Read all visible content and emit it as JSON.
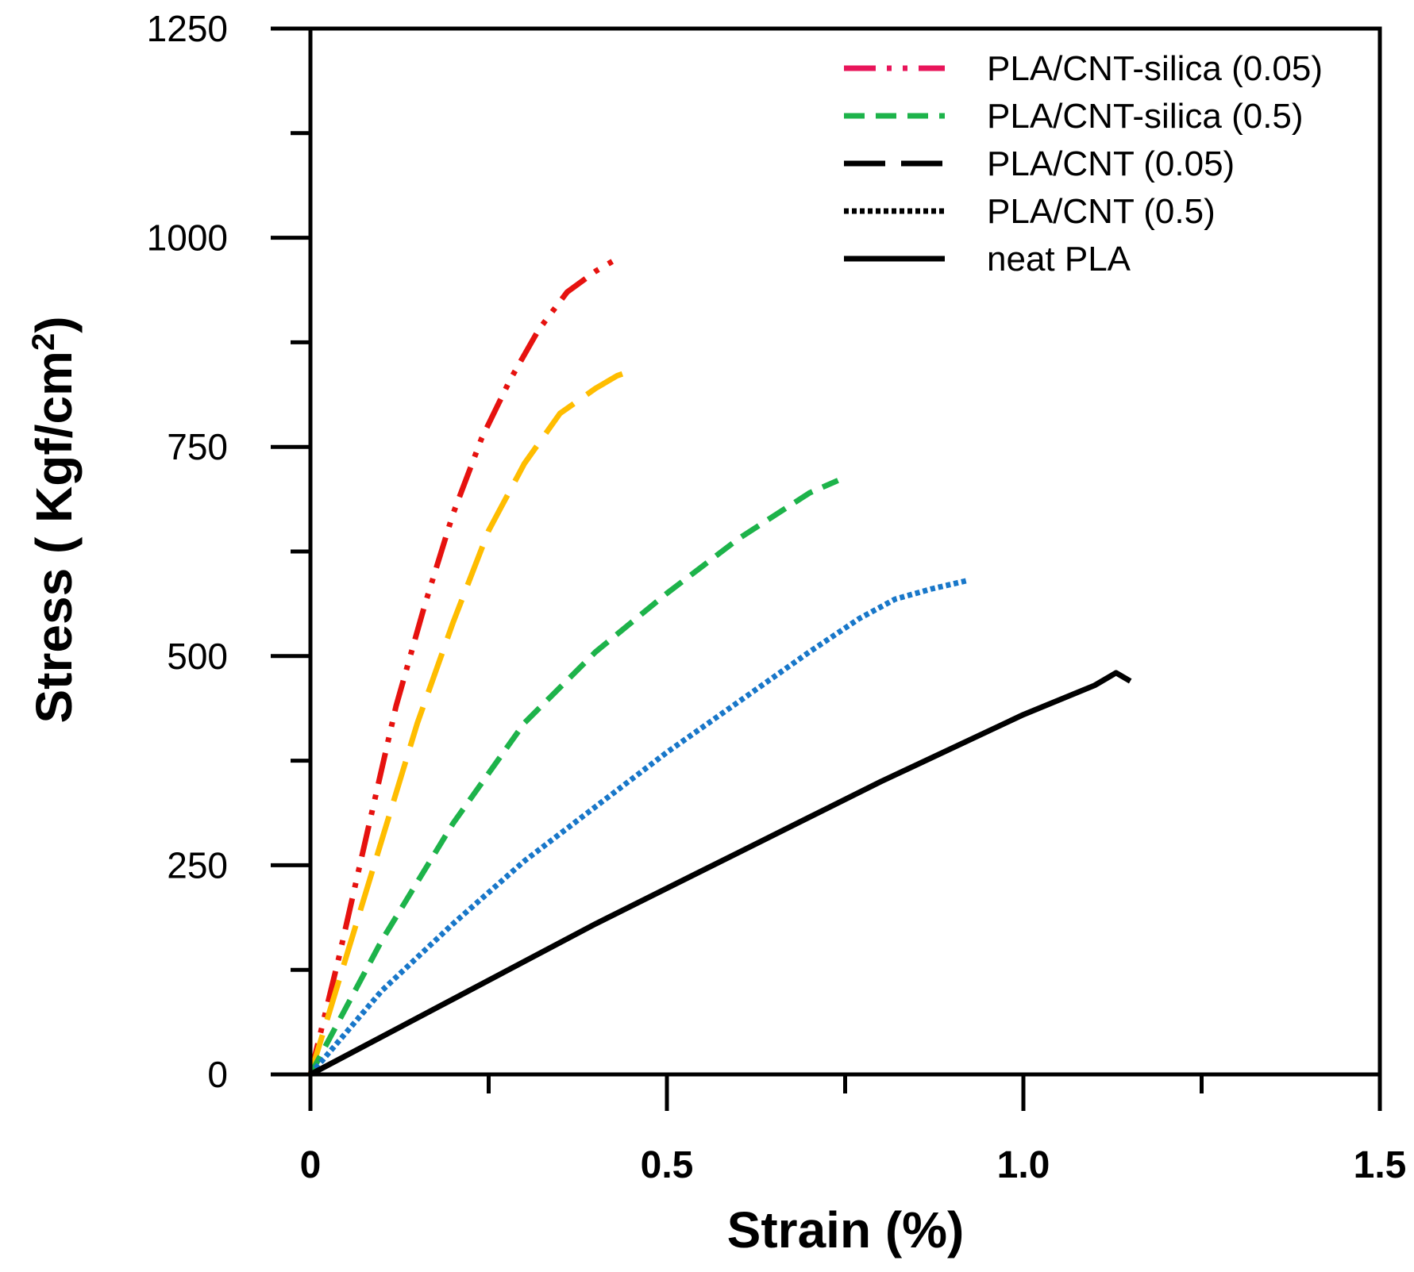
{
  "chart_data": {
    "type": "line",
    "title": "",
    "xlabel": "Strain (%)",
    "ylabel_main": "Stress ( Kgf/cm",
    "ylabel_sup": "2",
    "ylabel_close": ")",
    "xlim": [
      0,
      1.5
    ],
    "ylim": [
      0,
      1250
    ],
    "x_ticks_major": [
      0,
      0.5,
      1.0,
      1.5
    ],
    "x_tick_labels": [
      "0",
      "0.5",
      "1.0",
      "1.5"
    ],
    "x_ticks_minor": [
      0.25,
      0.75,
      1.25
    ],
    "y_ticks_major": [
      0,
      250,
      500,
      750,
      1000,
      1250
    ],
    "y_tick_labels": [
      "0",
      "250",
      "500",
      "750",
      "1000",
      "1250"
    ],
    "y_ticks_minor": [
      125,
      375,
      625,
      875,
      1125
    ],
    "grid": false,
    "legend_position": "top-right",
    "legend": [
      {
        "label": "PLA/CNT-silica (0.05)",
        "color": "#e8155a",
        "style": "dashdotdot"
      },
      {
        "label": "PLA/CNT-silica (0.5)",
        "color": "#1db34a",
        "style": "dashed"
      },
      {
        "label": "PLA/CNT (0.05)",
        "color": "#000000",
        "style": "longdash"
      },
      {
        "label": "PLA/CNT (0.5)",
        "color": "#000000",
        "style": "dotted"
      },
      {
        "label": "neat PLA",
        "color": "#000000",
        "style": "solid"
      }
    ],
    "series": [
      {
        "name": "PLA/CNT-silica (0.05)",
        "color": "#e6120f",
        "style": "dashdotdot",
        "x": [
          0,
          0.04,
          0.08,
          0.12,
          0.16,
          0.2,
          0.24,
          0.28,
          0.32,
          0.36,
          0.4,
          0.43
        ],
        "y": [
          0,
          140,
          290,
          440,
          560,
          670,
          760,
          830,
          890,
          935,
          960,
          975
        ]
      },
      {
        "name": "PLA/CNT (0.05) orange",
        "color": "#ffbd00",
        "style": "longdash",
        "x": [
          0,
          0.05,
          0.1,
          0.15,
          0.2,
          0.25,
          0.3,
          0.35,
          0.4,
          0.43,
          0.44
        ],
        "y": [
          0,
          140,
          280,
          420,
          540,
          650,
          730,
          790,
          820,
          835,
          838
        ]
      },
      {
        "name": "PLA/CNT-silica (0.5)",
        "color": "#1db34a",
        "style": "dashed",
        "x": [
          0,
          0.1,
          0.2,
          0.3,
          0.4,
          0.5,
          0.6,
          0.7,
          0.74
        ],
        "y": [
          0,
          160,
          300,
          420,
          505,
          575,
          640,
          695,
          710
        ]
      },
      {
        "name": "PLA/CNT (0.5)",
        "color": "#1877c9",
        "style": "dotted",
        "x": [
          0,
          0.1,
          0.2,
          0.3,
          0.4,
          0.5,
          0.6,
          0.7,
          0.77,
          0.82,
          0.87,
          0.92
        ],
        "y": [
          0,
          100,
          180,
          255,
          320,
          385,
          445,
          505,
          545,
          568,
          580,
          590
        ]
      },
      {
        "name": "neat PLA",
        "color": "#000000",
        "style": "solid",
        "x": [
          0,
          0.2,
          0.4,
          0.6,
          0.8,
          1.0,
          1.1,
          1.13,
          1.15
        ],
        "y": [
          0,
          90,
          180,
          265,
          350,
          430,
          465,
          480,
          470
        ]
      }
    ]
  }
}
